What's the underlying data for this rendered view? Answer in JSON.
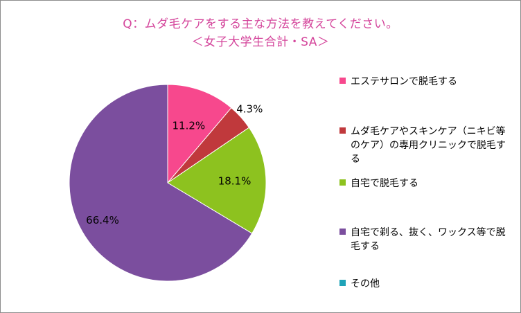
{
  "chart_data": {
    "type": "pie",
    "title": "Q：ムダ毛ケアをする主な方法を教えてください。",
    "subtitle": "＜女子大学生合計・SA＞",
    "categories": [
      "エステサロンで脱毛する",
      "ムダ毛ケアやスキンケア（ニキビ等のケア）の専用クリニックで脱毛する",
      "自宅で脱毛する",
      "自宅で剃る、抜く、ワックス等で脱毛する",
      "その他"
    ],
    "values": [
      11.2,
      4.3,
      18.1,
      66.4,
      0.0
    ],
    "data_labels": [
      "11.2%",
      "4.3%",
      "18.1%",
      "66.4%",
      ""
    ],
    "colors": [
      "#f7488d",
      "#c0393c",
      "#8dc21f",
      "#7b4e9e",
      "#1fa3b8"
    ],
    "legend_position": "right"
  },
  "legend": {
    "items": [
      {
        "label": "エステサロンで脱毛する",
        "color": "#f7488d"
      },
      {
        "label": "ムダ毛ケアやスキンケア（ニキビ等のケア）の専用クリニックで脱毛する",
        "color": "#c0393c"
      },
      {
        "label": "自宅で脱毛する",
        "color": "#8dc21f"
      },
      {
        "label": "自宅で剃る、抜く、ワックス等で脱毛する",
        "color": "#7b4e9e"
      },
      {
        "label": "その他",
        "color": "#1fa3b8"
      }
    ]
  }
}
